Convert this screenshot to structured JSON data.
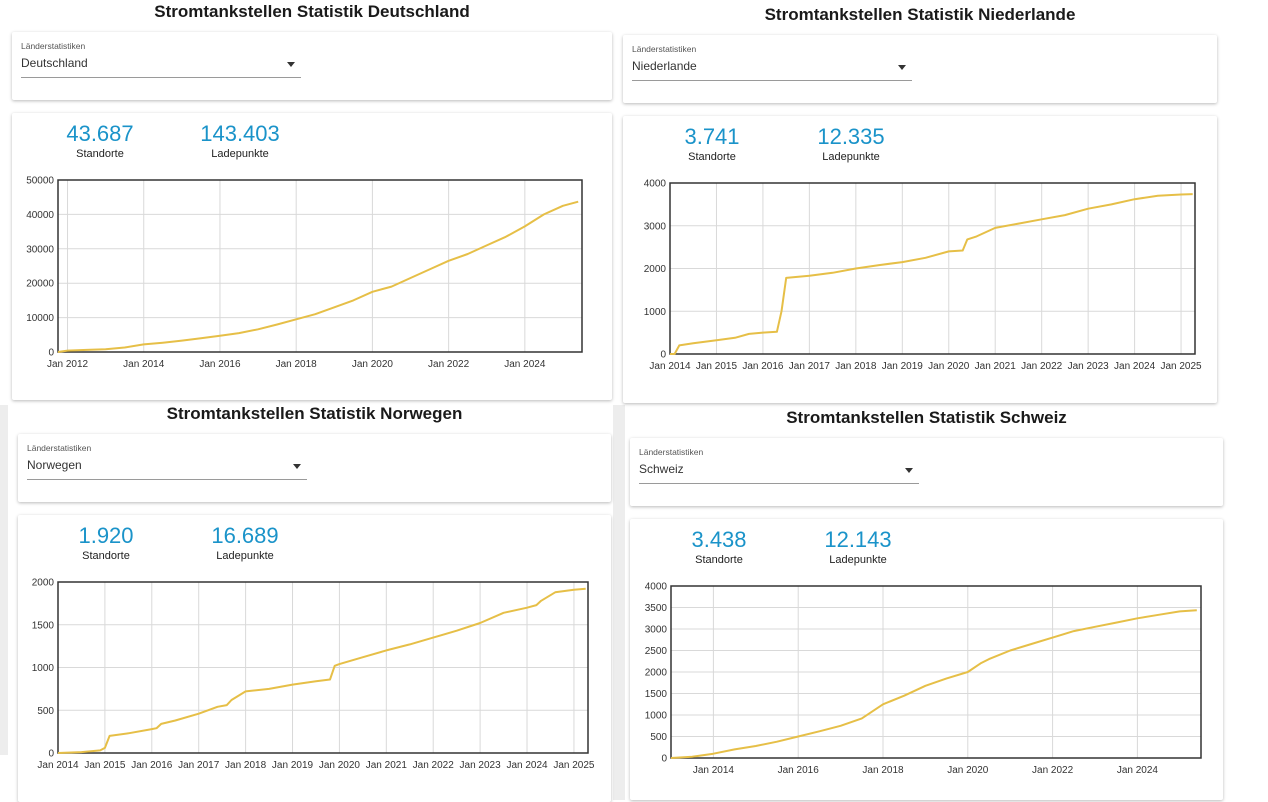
{
  "panels": [
    {
      "id": "de",
      "title": "Stromtankstellen Statistik Deutschland",
      "select": {
        "label": "Länderstatistiken",
        "value": "Deutschland"
      },
      "stats": {
        "standorte_value": "43.687",
        "standorte_label": "Standorte",
        "ladepunkte_value": "143.403",
        "ladepunkte_label": "Ladepunkte"
      }
    },
    {
      "id": "nl",
      "title": "Stromtankstellen Statistik Niederlande",
      "select": {
        "label": "Länderstatistiken",
        "value": "Niederlande"
      },
      "stats": {
        "standorte_value": "3.741",
        "standorte_label": "Standorte",
        "ladepunkte_value": "12.335",
        "ladepunkte_label": "Ladepunkte"
      }
    },
    {
      "id": "no",
      "title": "Stromtankstellen Statistik Norwegen",
      "select": {
        "label": "Länderstatistiken",
        "value": "Norwegen"
      },
      "stats": {
        "standorte_value": "1.920",
        "standorte_label": "Standorte",
        "ladepunkte_value": "16.689",
        "ladepunkte_label": "Ladepunkte"
      }
    },
    {
      "id": "ch",
      "title": "Stromtankstellen Statistik Schweiz",
      "select": {
        "label": "Länderstatistiken",
        "value": "Schweiz"
      },
      "stats": {
        "standorte_value": "3.438",
        "standorte_label": "Standorte",
        "ladepunkte_value": "12.143",
        "ladepunkte_label": "Ladepunkte"
      }
    }
  ],
  "chart_data": [
    {
      "type": "line",
      "title": "",
      "xlabel": "",
      "ylabel": "",
      "line_color": "#e6bf47",
      "grid": true,
      "xlim": [
        2011.75,
        2025.5
      ],
      "ylim": [
        0,
        50000
      ],
      "yticks": [
        0,
        10000,
        20000,
        30000,
        40000,
        50000
      ],
      "xticks": [
        2012,
        2014,
        2016,
        2018,
        2020,
        2022,
        2024
      ],
      "xtick_labels": [
        "Jan 2012",
        "Jan 2014",
        "Jan 2016",
        "Jan 2018",
        "Jan 2020",
        "Jan 2022",
        "Jan 2024"
      ],
      "x": [
        2011.75,
        2012,
        2012.5,
        2013,
        2013.5,
        2014,
        2014.5,
        2015,
        2015.5,
        2016,
        2016.5,
        2017,
        2017.5,
        2018,
        2018.5,
        2019,
        2019.5,
        2020,
        2020.5,
        2021,
        2021.5,
        2022,
        2022.5,
        2023,
        2023.5,
        2024,
        2024.5,
        2025,
        2025.4
      ],
      "y": [
        0,
        400,
        600,
        800,
        1300,
        2200,
        2700,
        3300,
        4000,
        4700,
        5500,
        6600,
        8000,
        9500,
        11000,
        13000,
        15000,
        17500,
        19000,
        21500,
        24000,
        26500,
        28500,
        31000,
        33500,
        36500,
        40000,
        42500,
        43687
      ]
    },
    {
      "type": "line",
      "title": "",
      "xlabel": "",
      "ylabel": "",
      "line_color": "#e6bf47",
      "grid": true,
      "xlim": [
        2014,
        2025.3
      ],
      "ylim": [
        0,
        4000
      ],
      "yticks": [
        0,
        1000,
        2000,
        3000,
        4000
      ],
      "xticks": [
        2014,
        2015,
        2016,
        2017,
        2018,
        2019,
        2020,
        2021,
        2022,
        2023,
        2024,
        2025
      ],
      "xtick_labels": [
        "Jan 2014",
        "Jan 2015",
        "Jan 2016",
        "Jan 2017",
        "Jan 2018",
        "Jan 2019",
        "Jan 2020",
        "Jan 2021",
        "Jan 2022",
        "Jan 2023",
        "Jan 2024",
        "Jan 2025"
      ],
      "x": [
        2014,
        2014.1,
        2014.2,
        2014.5,
        2015,
        2015.4,
        2015.7,
        2016,
        2016.3,
        2016.4,
        2016.5,
        2017,
        2017.5,
        2018,
        2018.5,
        2019,
        2019.5,
        2020,
        2020.3,
        2020.4,
        2020.6,
        2021,
        2021.5,
        2022,
        2022.5,
        2023,
        2023.5,
        2024,
        2024.5,
        2025,
        2025.25
      ],
      "y": [
        0,
        0,
        200,
        250,
        320,
        380,
        470,
        500,
        520,
        1000,
        1780,
        1830,
        1900,
        2000,
        2080,
        2150,
        2250,
        2400,
        2420,
        2680,
        2750,
        2950,
        3050,
        3150,
        3250,
        3400,
        3500,
        3620,
        3700,
        3730,
        3741
      ]
    },
    {
      "type": "line",
      "title": "",
      "xlabel": "",
      "ylabel": "",
      "line_color": "#e6bf47",
      "grid": true,
      "xlim": [
        2014,
        2025.3
      ],
      "ylim": [
        0,
        2000
      ],
      "yticks": [
        0,
        500,
        1000,
        1500,
        2000
      ],
      "xticks": [
        2014,
        2015,
        2016,
        2017,
        2018,
        2019,
        2020,
        2021,
        2022,
        2023,
        2024,
        2025
      ],
      "xtick_labels": [
        "Jan 2014",
        "Jan 2015",
        "Jan 2016",
        "Jan 2017",
        "Jan 2018",
        "Jan 2019",
        "Jan 2020",
        "Jan 2021",
        "Jan 2022",
        "Jan 2023",
        "Jan 2024",
        "Jan 2025"
      ],
      "x": [
        2014,
        2014.5,
        2014.9,
        2015,
        2015.1,
        2015.5,
        2016,
        2016.1,
        2016.2,
        2016.5,
        2017,
        2017.4,
        2017.6,
        2017.7,
        2018,
        2018.5,
        2019,
        2019.5,
        2019.8,
        2019.9,
        2020,
        2020.5,
        2021,
        2021.5,
        2022,
        2022.5,
        2023,
        2023.5,
        2024,
        2024.2,
        2024.3,
        2024.6,
        2025,
        2025.25
      ],
      "y": [
        0,
        10,
        30,
        60,
        200,
        230,
        280,
        290,
        340,
        380,
        460,
        540,
        560,
        620,
        720,
        750,
        800,
        840,
        860,
        1020,
        1040,
        1120,
        1200,
        1270,
        1350,
        1430,
        1520,
        1640,
        1700,
        1730,
        1780,
        1880,
        1910,
        1920
      ]
    },
    {
      "type": "line",
      "title": "",
      "xlabel": "",
      "ylabel": "",
      "line_color": "#e6bf47",
      "grid": true,
      "xlim": [
        2013,
        2025.5
      ],
      "ylim": [
        0,
        4000
      ],
      "yticks": [
        0,
        500,
        1000,
        1500,
        2000,
        2500,
        3000,
        3500,
        4000
      ],
      "xticks": [
        2014,
        2016,
        2018,
        2020,
        2022,
        2024
      ],
      "xtick_labels": [
        "Jan 2014",
        "Jan 2016",
        "Jan 2018",
        "Jan 2020",
        "Jan 2022",
        "Jan 2024"
      ],
      "x": [
        2013,
        2013.5,
        2014,
        2014.5,
        2015,
        2015.5,
        2016,
        2016.5,
        2017,
        2017.5,
        2018,
        2018.5,
        2019,
        2019.5,
        2020,
        2020.3,
        2020.5,
        2021,
        2021.5,
        2022,
        2022.5,
        2023,
        2023.5,
        2024,
        2024.5,
        2025,
        2025.4
      ],
      "y": [
        0,
        30,
        100,
        200,
        280,
        380,
        500,
        620,
        750,
        920,
        1250,
        1450,
        1680,
        1850,
        2000,
        2200,
        2300,
        2500,
        2650,
        2800,
        2950,
        3050,
        3150,
        3250,
        3330,
        3410,
        3438
      ]
    }
  ]
}
